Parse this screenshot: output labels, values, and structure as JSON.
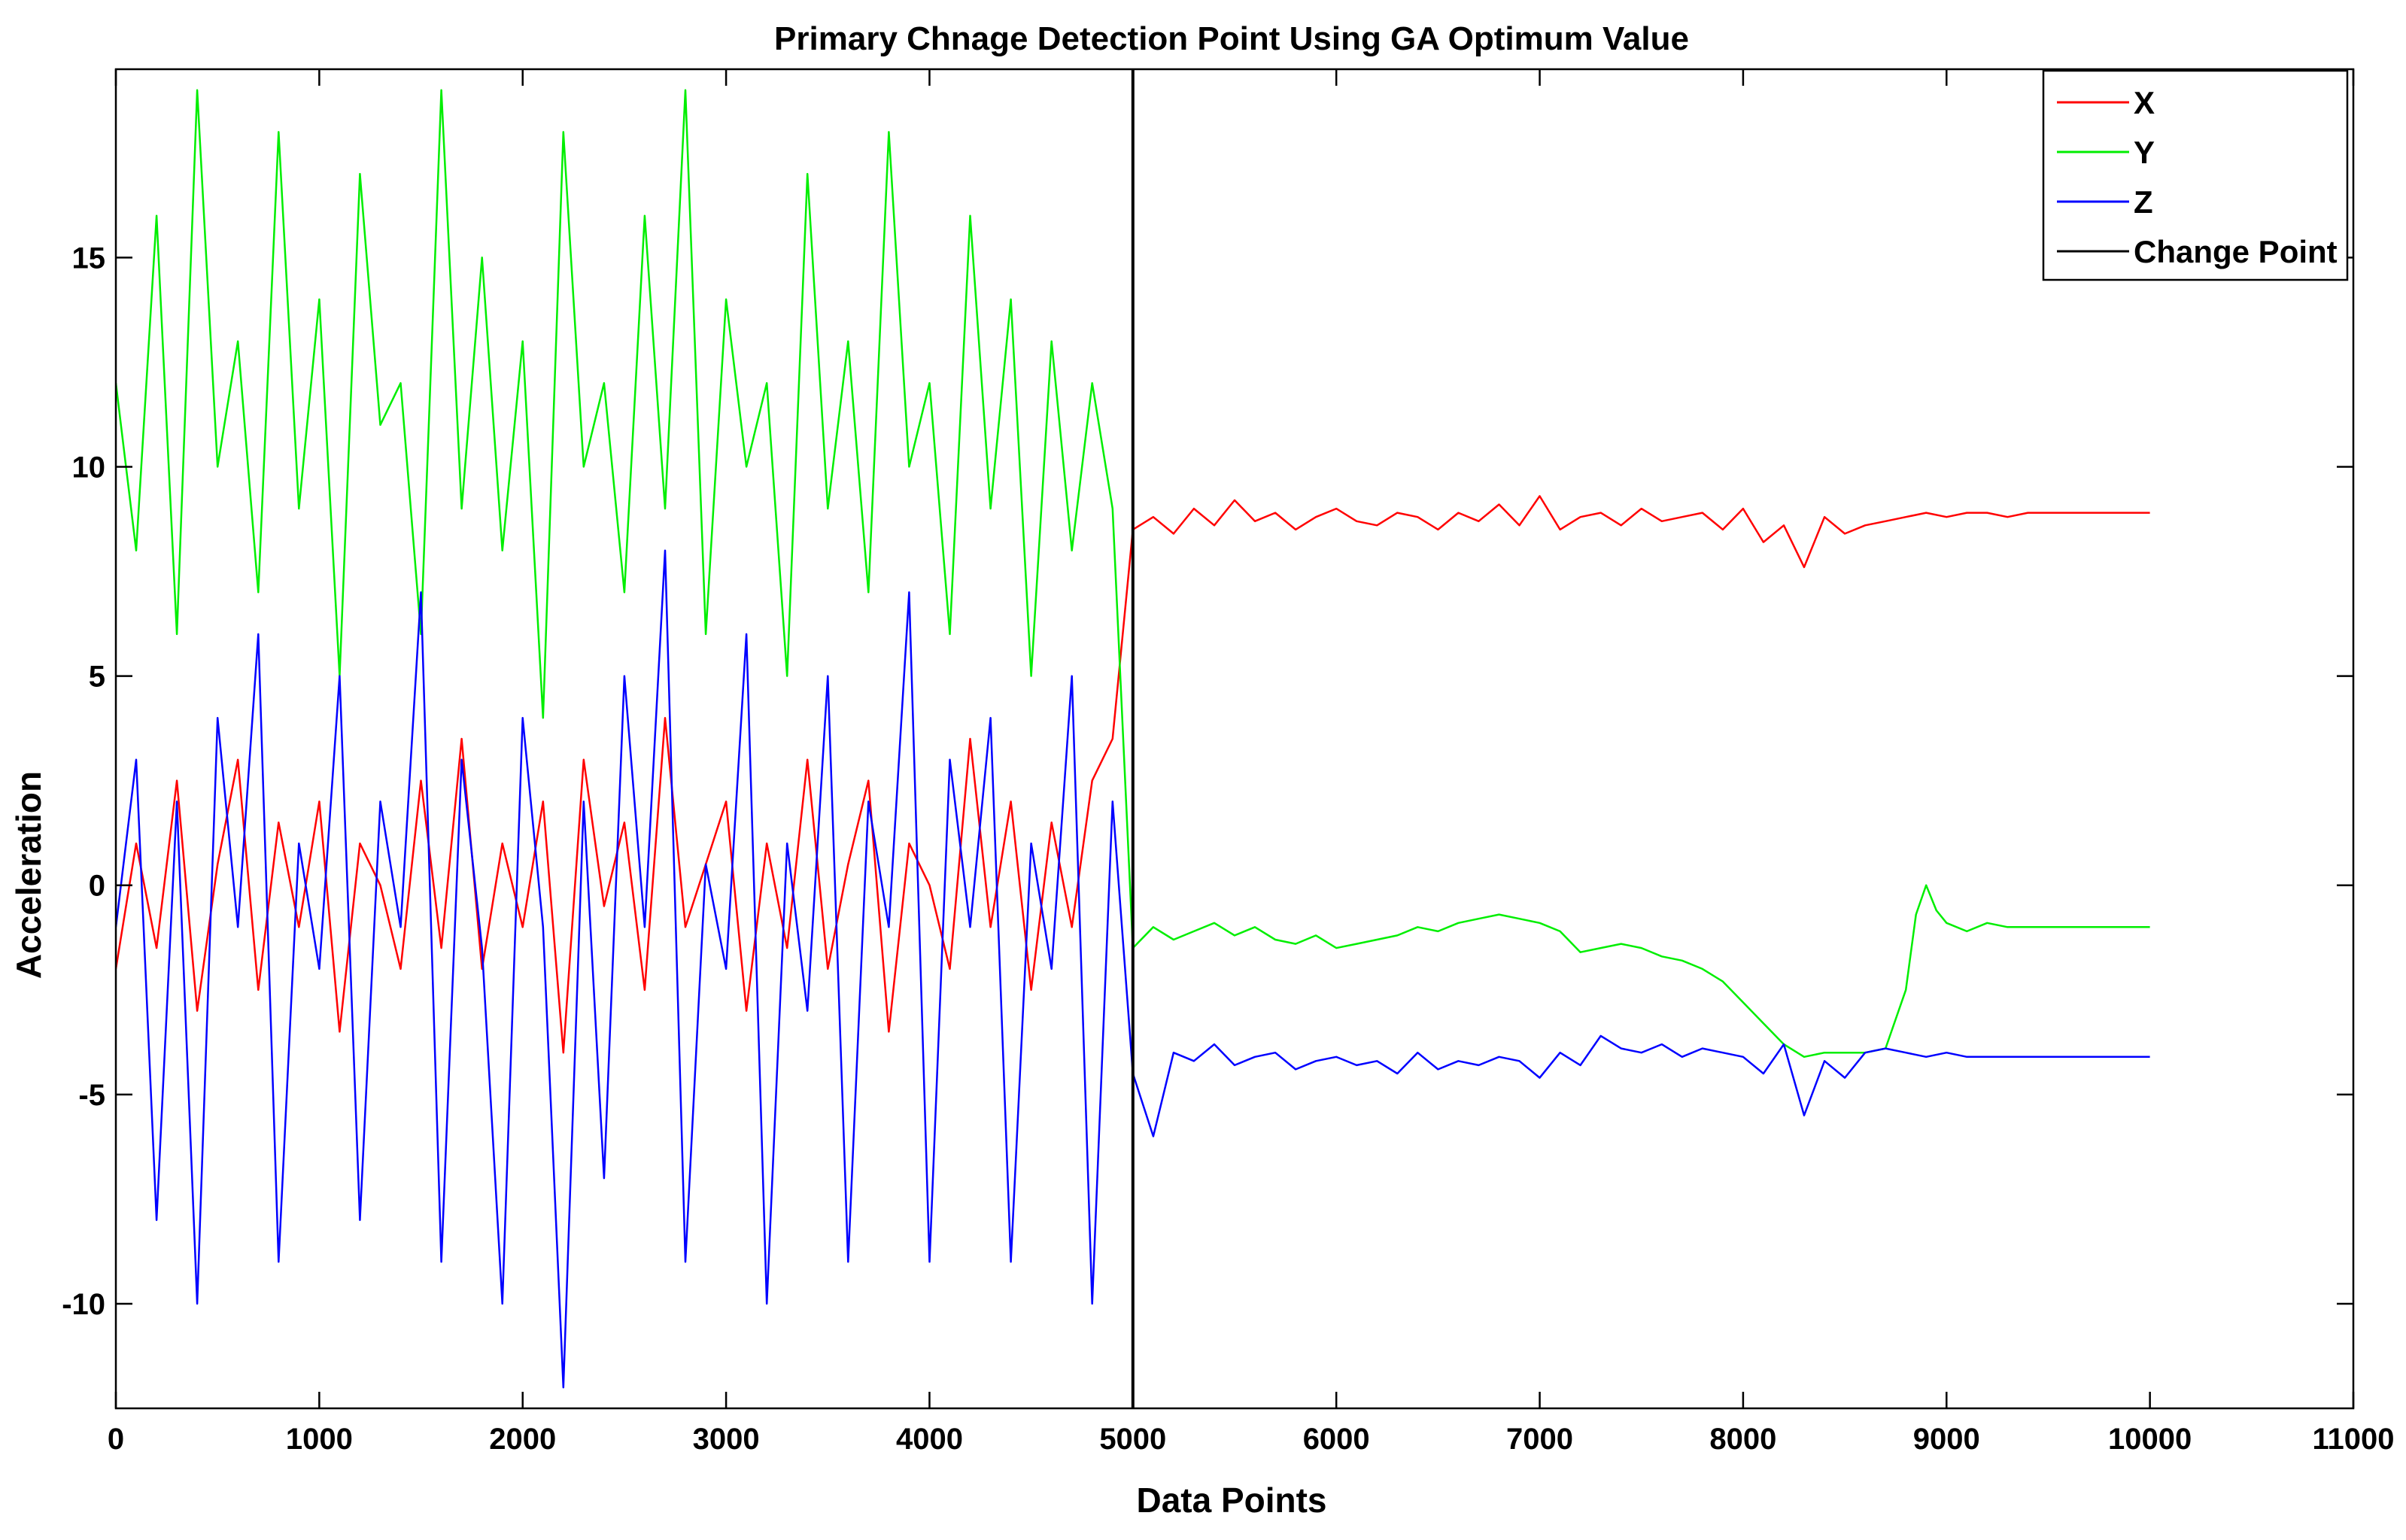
{
  "chart_data": {
    "type": "line",
    "title": "Primary Chnage Detection Point Using GA Optimum Value",
    "xlabel": "Data Points",
    "ylabel": "Acceleration",
    "xlim": [
      0,
      11000
    ],
    "ylim": [
      -12.5,
      19.5
    ],
    "xticks": [
      "0",
      "1000",
      "2000",
      "3000",
      "4000",
      "5000",
      "6000",
      "7000",
      "8000",
      "9000",
      "10000",
      "11000"
    ],
    "yticks": [
      "-10",
      "-5",
      "0",
      "5",
      "10",
      "15"
    ],
    "legend_position": "top-right",
    "grid": false,
    "change_point": {
      "name": "Change Point",
      "x": 5000,
      "color": "#000000"
    },
    "series": [
      {
        "name": "X",
        "color": "#ff0000",
        "x": [
          0,
          100,
          200,
          300,
          400,
          500,
          600,
          700,
          800,
          900,
          1000,
          1100,
          1200,
          1300,
          1400,
          1500,
          1600,
          1700,
          1800,
          1900,
          2000,
          2100,
          2200,
          2300,
          2400,
          2500,
          2600,
          2700,
          2800,
          2900,
          3000,
          3100,
          3200,
          3300,
          3400,
          3500,
          3600,
          3700,
          3800,
          3900,
          4000,
          4100,
          4200,
          4300,
          4400,
          4500,
          4600,
          4700,
          4800,
          4900,
          5000,
          5100,
          5200,
          5300,
          5400,
          5500,
          5600,
          5700,
          5800,
          5900,
          6000,
          6100,
          6200,
          6300,
          6400,
          6500,
          6600,
          6700,
          6800,
          6900,
          7000,
          7100,
          7200,
          7300,
          7400,
          7500,
          7600,
          7700,
          7800,
          7900,
          8000,
          8100,
          8200,
          8300,
          8400,
          8500,
          8600,
          8700,
          8800,
          8900,
          9000,
          9100,
          9200,
          9300,
          9400,
          9500,
          9600,
          9700,
          9800,
          9900,
          10000
        ],
        "y": [
          -2.0,
          1.0,
          -1.5,
          2.5,
          -3.0,
          0.5,
          3.0,
          -2.5,
          1.5,
          -1.0,
          2.0,
          -3.5,
          1.0,
          0.0,
          -2.0,
          2.5,
          -1.5,
          3.5,
          -2.0,
          1.0,
          -1.0,
          2.0,
          -4.0,
          3.0,
          -0.5,
          1.5,
          -2.5,
          4.0,
          -1.0,
          0.5,
          2.0,
          -3.0,
          1.0,
          -1.5,
          3.0,
          -2.0,
          0.5,
          2.5,
          -3.5,
          1.0,
          0.0,
          -2.0,
          3.5,
          -1.0,
          2.0,
          -2.5,
          1.5,
          -1.0,
          2.5,
          3.5,
          8.5,
          8.8,
          8.4,
          9.0,
          8.6,
          9.2,
          8.7,
          8.9,
          8.5,
          8.8,
          9.0,
          8.7,
          8.6,
          8.9,
          8.8,
          8.5,
          8.9,
          8.7,
          9.1,
          8.6,
          9.3,
          8.5,
          8.8,
          8.9,
          8.6,
          9.0,
          8.7,
          8.8,
          8.9,
          8.5,
          9.0,
          8.2,
          8.6,
          7.6,
          8.8,
          8.4,
          8.6,
          8.7,
          8.8,
          8.9,
          8.8,
          8.9,
          8.9,
          8.8,
          8.9,
          8.9,
          8.9,
          8.9,
          8.9,
          8.9,
          8.9
        ]
      },
      {
        "name": "Y",
        "color": "#00ee00",
        "x": [
          0,
          100,
          200,
          300,
          400,
          500,
          600,
          700,
          800,
          900,
          1000,
          1100,
          1200,
          1300,
          1400,
          1500,
          1600,
          1700,
          1800,
          1900,
          2000,
          2100,
          2200,
          2300,
          2400,
          2500,
          2600,
          2700,
          2800,
          2900,
          3000,
          3100,
          3200,
          3300,
          3400,
          3500,
          3600,
          3700,
          3800,
          3900,
          4000,
          4100,
          4200,
          4300,
          4400,
          4500,
          4600,
          4700,
          4800,
          4900,
          5000,
          5100,
          5200,
          5300,
          5400,
          5500,
          5600,
          5700,
          5800,
          5900,
          6000,
          6100,
          6200,
          6300,
          6400,
          6500,
          6600,
          6700,
          6800,
          6900,
          7000,
          7100,
          7200,
          7300,
          7400,
          7500,
          7600,
          7700,
          7800,
          7900,
          8000,
          8100,
          8200,
          8300,
          8400,
          8500,
          8600,
          8700,
          8800,
          8850,
          8900,
          8950,
          9000,
          9100,
          9200,
          9300,
          9400,
          9500,
          9600,
          9700,
          9800,
          9900,
          10000
        ],
        "y": [
          12.0,
          8.0,
          16.0,
          6.0,
          19.0,
          10.0,
          13.0,
          7.0,
          18.0,
          9.0,
          14.0,
          5.0,
          17.0,
          11.0,
          12.0,
          6.0,
          19.0,
          9.0,
          15.0,
          8.0,
          13.0,
          4.0,
          18.0,
          10.0,
          12.0,
          7.0,
          16.0,
          9.0,
          19.0,
          6.0,
          14.0,
          10.0,
          12.0,
          5.0,
          17.0,
          9.0,
          13.0,
          7.0,
          18.0,
          10.0,
          12.0,
          6.0,
          16.0,
          9.0,
          14.0,
          5.0,
          13.0,
          8.0,
          12.0,
          9.0,
          -1.5,
          -1.0,
          -1.3,
          -1.1,
          -0.9,
          -1.2,
          -1.0,
          -1.3,
          -1.4,
          -1.2,
          -1.5,
          -1.4,
          -1.3,
          -1.2,
          -1.0,
          -1.1,
          -0.9,
          -0.8,
          -0.7,
          -0.8,
          -0.9,
          -1.1,
          -1.6,
          -1.5,
          -1.4,
          -1.5,
          -1.7,
          -1.8,
          -2.0,
          -2.3,
          -2.8,
          -3.3,
          -3.8,
          -4.1,
          -4.0,
          -4.0,
          -4.0,
          -3.9,
          -2.5,
          -0.7,
          0.0,
          -0.6,
          -0.9,
          -1.1,
          -0.9,
          -1.0,
          -1.0,
          -1.0,
          -1.0,
          -1.0,
          -1.0,
          -1.0,
          -1.0
        ]
      },
      {
        "name": "Z",
        "color": "#0000ff",
        "x": [
          0,
          100,
          200,
          300,
          400,
          500,
          600,
          700,
          800,
          900,
          1000,
          1100,
          1200,
          1300,
          1400,
          1500,
          1600,
          1700,
          1800,
          1900,
          2000,
          2100,
          2200,
          2300,
          2400,
          2500,
          2600,
          2700,
          2800,
          2900,
          3000,
          3100,
          3200,
          3300,
          3400,
          3500,
          3600,
          3700,
          3800,
          3900,
          4000,
          4100,
          4200,
          4300,
          4400,
          4500,
          4600,
          4700,
          4800,
          4900,
          5000,
          5100,
          5200,
          5300,
          5400,
          5500,
          5600,
          5700,
          5800,
          5900,
          6000,
          6100,
          6200,
          6300,
          6400,
          6500,
          6600,
          6700,
          6800,
          6900,
          7000,
          7100,
          7200,
          7300,
          7400,
          7500,
          7600,
          7700,
          7800,
          7900,
          8000,
          8100,
          8200,
          8300,
          8400,
          8500,
          8600,
          8700,
          8800,
          8900,
          9000,
          9100,
          9200,
          9300,
          9400,
          9500,
          9600,
          9700,
          9800,
          9900,
          10000
        ],
        "y": [
          -1.0,
          3.0,
          -8.0,
          2.0,
          -10.0,
          4.0,
          -1.0,
          6.0,
          -9.0,
          1.0,
          -2.0,
          5.0,
          -8.0,
          2.0,
          -1.0,
          7.0,
          -9.0,
          3.0,
          -1.5,
          -10.0,
          4.0,
          -1.0,
          -12.0,
          2.0,
          -7.0,
          5.0,
          -1.0,
          8.0,
          -9.0,
          0.5,
          -2.0,
          6.0,
          -10.0,
          1.0,
          -3.0,
          5.0,
          -9.0,
          2.0,
          -1.0,
          7.0,
          -9.0,
          3.0,
          -1.0,
          4.0,
          -9.0,
          1.0,
          -2.0,
          5.0,
          -10.0,
          2.0,
          -4.5,
          -6.0,
          -4.0,
          -4.2,
          -3.8,
          -4.3,
          -4.1,
          -4.0,
          -4.4,
          -4.2,
          -4.1,
          -4.3,
          -4.2,
          -4.5,
          -4.0,
          -4.4,
          -4.2,
          -4.3,
          -4.1,
          -4.2,
          -4.6,
          -4.0,
          -4.3,
          -3.6,
          -3.9,
          -4.0,
          -3.8,
          -4.1,
          -3.9,
          -4.0,
          -4.1,
          -4.5,
          -3.8,
          -5.5,
          -4.2,
          -4.6,
          -4.0,
          -3.9,
          -4.0,
          -4.1,
          -4.0,
          -4.1,
          -4.1,
          -4.1,
          -4.1,
          -4.1,
          -4.1,
          -4.1,
          -4.1,
          -4.1,
          -4.1
        ]
      }
    ]
  }
}
